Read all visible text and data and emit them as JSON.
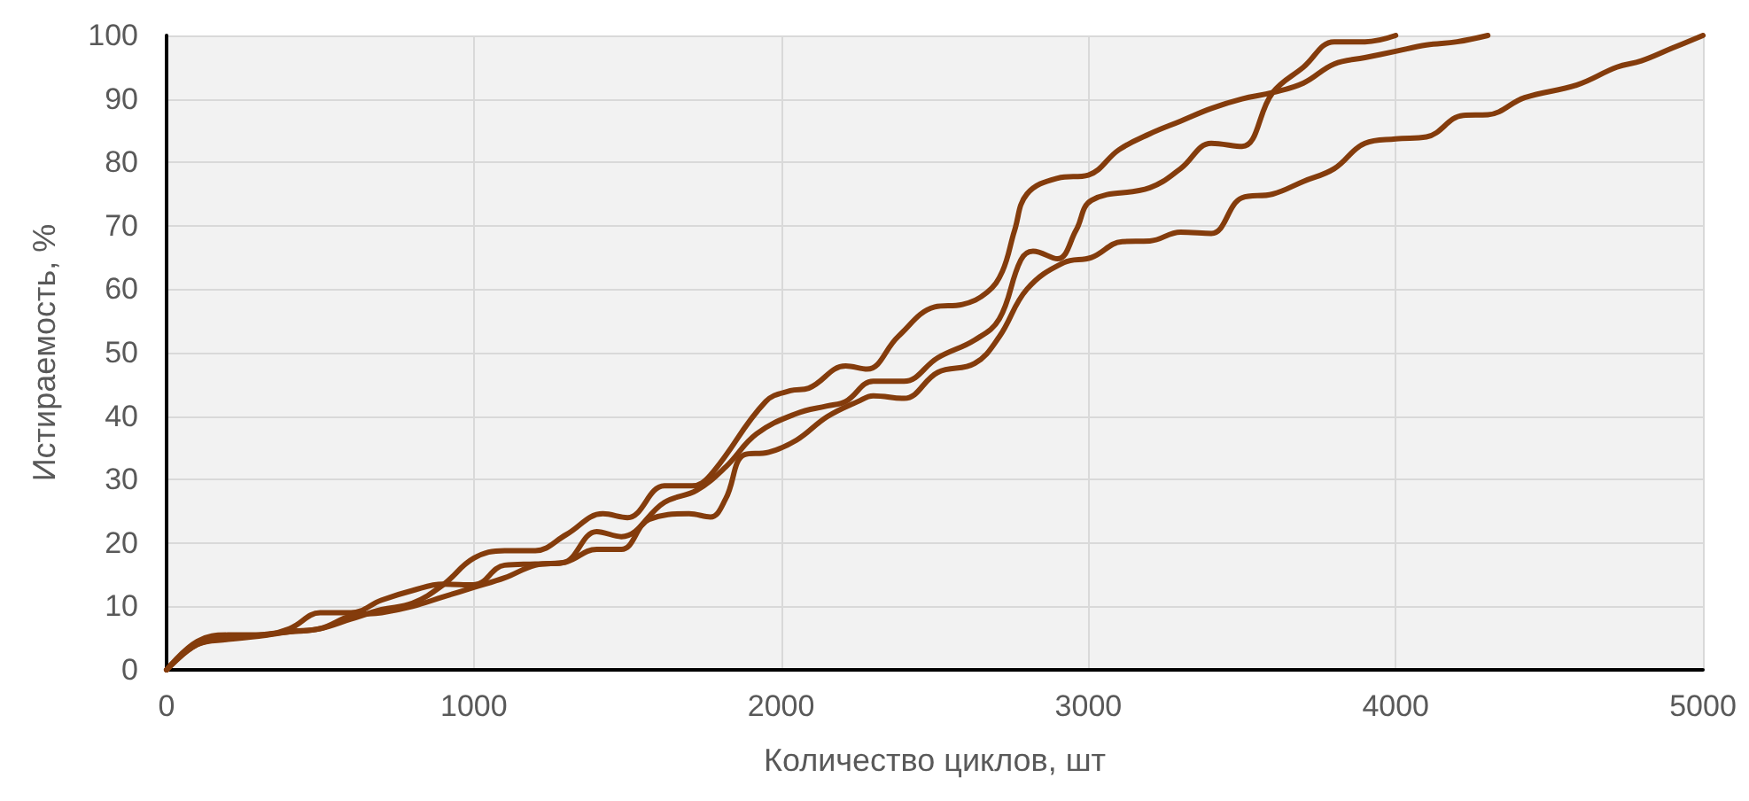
{
  "chart_data": {
    "type": "line",
    "xlabel": "Количество циклов, шт",
    "ylabel": "Истираемость, %",
    "xlim": [
      0,
      5000
    ],
    "xticks": [
      0,
      1000,
      2000,
      3000,
      4000,
      5000
    ],
    "ylim": [
      0,
      100
    ],
    "yticks": [
      0,
      10,
      20,
      30,
      40,
      50,
      60,
      70,
      80,
      90,
      100
    ],
    "grid": true,
    "marker": "none",
    "line_style": "solid",
    "series": [
      {
        "color": "#843c0c",
        "x": [
          0,
          100,
          200,
          300,
          400,
          500,
          600,
          700,
          800,
          900,
          1000,
          1100,
          1200,
          1300,
          1420,
          1500,
          1620,
          1710,
          1770,
          1950,
          2030,
          2090,
          2210,
          2280,
          2380,
          2500,
          2590,
          2670,
          2720,
          2760,
          2800,
          2900,
          3000,
          3100,
          3200,
          3300,
          3400,
          3500,
          3600,
          3700,
          3800,
          3900,
          4000,
          4100,
          4200,
          4300
        ],
        "values": [
          0,
          4,
          4.8,
          5.3,
          6,
          6.5,
          8,
          9.5,
          10.5,
          13.4,
          17.6,
          18.8,
          18.8,
          21.3,
          24.6,
          24,
          29,
          29,
          30.7,
          42.3,
          44,
          44.4,
          47.9,
          47.4,
          52.5,
          57.2,
          57.6,
          59.5,
          62.8,
          69.3,
          75,
          77.5,
          78,
          82,
          84.5,
          86.5,
          88.5,
          90,
          91,
          92.5,
          95.5,
          96.5,
          97.5,
          98.5,
          99,
          100
        ]
      },
      {
        "color": "#843c0c",
        "x": [
          0,
          100,
          200,
          300,
          400,
          500,
          600,
          700,
          800,
          900,
          1000,
          1100,
          1200,
          1290,
          1400,
          1480,
          1620,
          1725,
          1820,
          1920,
          2050,
          2150,
          2210,
          2300,
          2400,
          2510,
          2630,
          2710,
          2780,
          2820,
          2900,
          2960,
          3010,
          3200,
          3300,
          3400,
          3500,
          3600,
          3700,
          3800,
          3900,
          4000
        ],
        "values": [
          0,
          4.5,
          5.5,
          5.5,
          6.5,
          9,
          9,
          11,
          12.5,
          13.5,
          13.4,
          16.5,
          16.7,
          16.9,
          21.8,
          21,
          26.4,
          28.3,
          32,
          37.2,
          40.4,
          41.6,
          42.3,
          45.5,
          45.5,
          49.2,
          52,
          55.3,
          64.6,
          66,
          64.8,
          69.3,
          74,
          76,
          79,
          83,
          82.5,
          91,
          95,
          99,
          99,
          100
        ]
      },
      {
        "color": "#843c0c",
        "x": [
          0,
          100,
          200,
          300,
          400,
          500,
          600,
          700,
          800,
          900,
          1000,
          1100,
          1200,
          1300,
          1400,
          1480,
          1570,
          1700,
          1770,
          1820,
          1880,
          1960,
          2050,
          2150,
          2250,
          2300,
          2400,
          2510,
          2630,
          2710,
          2800,
          2920,
          3010,
          3110,
          3200,
          3300,
          3400,
          3500,
          3600,
          3700,
          3800,
          3900,
          4000,
          4100,
          4220,
          4300,
          4420,
          4590,
          4720,
          4800,
          4900,
          5000
        ],
        "values": [
          0,
          4,
          5,
          5.5,
          6,
          6.5,
          8.5,
          9,
          10,
          11.5,
          13,
          14.5,
          16.5,
          17,
          19,
          19,
          23.7,
          24.6,
          24.1,
          27,
          33.9,
          34.3,
          36.2,
          39.9,
          42.3,
          43.2,
          42.8,
          46.9,
          48.3,
          52.5,
          60,
          64.2,
          65,
          67.5,
          67.6,
          69,
          68.8,
          74.4,
          75,
          77,
          79,
          83,
          83.7,
          84,
          87.4,
          87.5,
          90.2,
          92.2,
          95,
          96,
          98,
          100
        ]
      }
    ]
  }
}
